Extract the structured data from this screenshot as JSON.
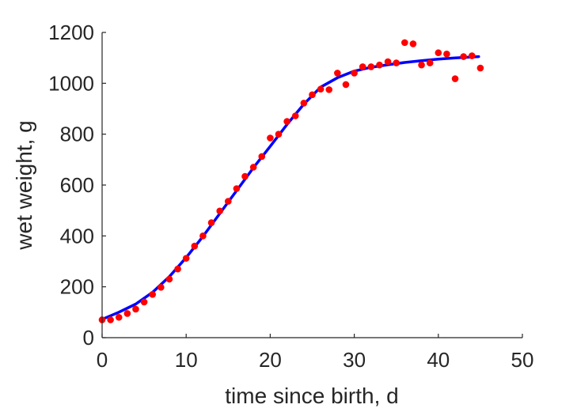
{
  "chart_data": {
    "type": "scatter",
    "title": "",
    "xlabel": "time since birth, d",
    "ylabel": "wet weight, g",
    "xlim": [
      0,
      50
    ],
    "ylim": [
      0,
      1200
    ],
    "xticks": [
      "0",
      "10",
      "20",
      "30",
      "40",
      "50"
    ],
    "yticks": [
      "0",
      "200",
      "400",
      "600",
      "800",
      "1000",
      "1200"
    ],
    "grid": false,
    "legend": "none",
    "series": [
      {
        "kind": "points",
        "color": "#ff0000",
        "x": [
          0,
          1,
          2,
          3,
          4,
          5,
          6,
          7,
          8,
          9,
          10,
          11,
          12,
          13,
          14,
          15,
          16,
          17,
          18,
          19,
          20,
          21,
          22,
          23,
          24,
          25,
          26,
          27,
          28,
          29,
          30,
          31,
          32,
          33,
          34,
          35,
          36,
          37,
          38,
          39,
          40,
          41,
          42,
          43,
          44,
          45
        ],
        "y": [
          70,
          70,
          80,
          95,
          112,
          140,
          170,
          198,
          230,
          270,
          312,
          360,
          400,
          452,
          498,
          536,
          586,
          634,
          670,
          712,
          785,
          800,
          850,
          872,
          922,
          955,
          977,
          975,
          1040,
          995,
          1040,
          1065,
          1065,
          1072,
          1085,
          1080,
          1160,
          1155,
          1072,
          1080,
          1120,
          1115,
          1018,
          1105,
          1108,
          1060
        ]
      },
      {
        "kind": "line",
        "color": "#0000ff",
        "x": [
          0,
          2,
          4,
          6,
          8,
          10,
          12,
          14,
          16,
          18,
          20,
          22,
          24,
          26,
          28,
          30,
          32,
          34,
          36,
          38,
          40,
          42,
          44.8
        ],
        "y": [
          72,
          100,
          132,
          178,
          240,
          315,
          398,
          488,
          578,
          668,
          752,
          838,
          918,
          985,
          1022,
          1048,
          1063,
          1073,
          1082,
          1089,
          1095,
          1100,
          1105
        ]
      }
    ]
  }
}
